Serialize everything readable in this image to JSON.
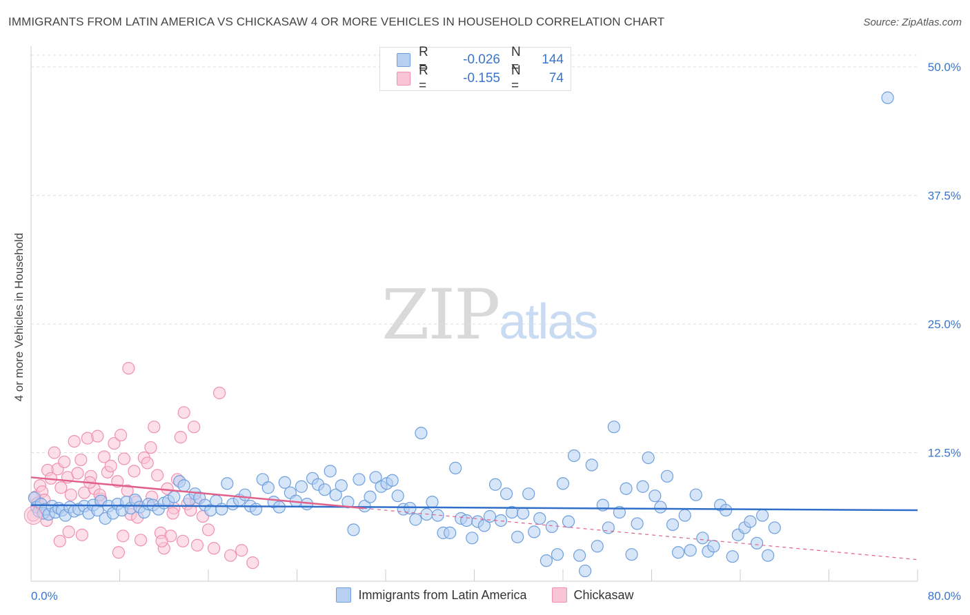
{
  "title": "IMMIGRANTS FROM LATIN AMERICA VS CHICKASAW 4 OR MORE VEHICLES IN HOUSEHOLD CORRELATION CHART",
  "source": "Source: ZipAtlas.com",
  "watermark": {
    "zip": "ZIP",
    "atlas": "atlas"
  },
  "legend": {
    "rows": [
      {
        "r_label": "R =",
        "r_value": "-0.026",
        "n_label": "N =",
        "n_value": "144"
      },
      {
        "r_label": "R =",
        "r_value": "-0.155",
        "n_label": "N =",
        "n_value": "74"
      }
    ]
  },
  "colors": {
    "blue": "#6e9fdc",
    "blue_fill": "#b7d0f2",
    "blue_line": "#2f6fca",
    "pink": "#ef90b0",
    "pink_fill": "#f9c4d6",
    "pink_line": "#e0608a",
    "grid": "#dddddd",
    "tick_text": "#3a74c8"
  },
  "chart_data": {
    "type": "scatter",
    "title": "IMMIGRANTS FROM LATIN AMERICA VS CHICKASAW 4 OR MORE VEHICLES IN HOUSEHOLD CORRELATION CHART",
    "xlabel": "",
    "ylabel": "4 or more Vehicles in Household",
    "xlim": [
      0,
      80
    ],
    "ylim": [
      0,
      50
    ],
    "x_tick_labels": [
      "0.0%",
      "80.0%"
    ],
    "y_ticks": [
      12.5,
      25.0,
      37.5,
      50.0
    ],
    "y_tick_labels": [
      "12.5%",
      "25.0%",
      "37.5%",
      "50.0%"
    ],
    "grid": "horizontal dashed",
    "series": [
      {
        "name": "Immigrants from Latin America",
        "color": "#6e9fdc",
        "trend": {
          "x": [
            0,
            80
          ],
          "y": [
            7.4,
            6.9
          ],
          "style": "solid"
        },
        "points": [
          [
            0.3,
            8.1
          ],
          [
            0.5,
            7.2
          ],
          [
            0.7,
            6.8
          ],
          [
            0.9,
            7.5
          ],
          [
            1.1,
            6.6
          ],
          [
            1.3,
            7.0
          ],
          [
            1.6,
            6.5
          ],
          [
            1.9,
            7.3
          ],
          [
            2.2,
            6.7
          ],
          [
            2.5,
            7.1
          ],
          [
            2.8,
            6.9
          ],
          [
            3.1,
            6.4
          ],
          [
            3.5,
            7.2
          ],
          [
            3.9,
            6.8
          ],
          [
            4.3,
            7.0
          ],
          [
            4.8,
            7.3
          ],
          [
            5.2,
            6.6
          ],
          [
            5.6,
            7.4
          ],
          [
            6.0,
            6.9
          ],
          [
            6.3,
            7.8
          ],
          [
            6.7,
            6.1
          ],
          [
            7.0,
            7.3
          ],
          [
            7.4,
            6.6
          ],
          [
            7.8,
            7.5
          ],
          [
            8.2,
            6.9
          ],
          [
            8.6,
            7.7
          ],
          [
            9.0,
            7.1
          ],
          [
            9.4,
            7.9
          ],
          [
            9.8,
            7.2
          ],
          [
            10.2,
            6.7
          ],
          [
            10.6,
            7.5
          ],
          [
            11.0,
            7.4
          ],
          [
            11.5,
            7.0
          ],
          [
            12.0,
            7.6
          ],
          [
            12.4,
            7.8
          ],
          [
            12.9,
            8.2
          ],
          [
            13.4,
            9.7
          ],
          [
            13.8,
            9.3
          ],
          [
            14.3,
            7.9
          ],
          [
            14.8,
            8.5
          ],
          [
            15.2,
            8.1
          ],
          [
            15.7,
            7.4
          ],
          [
            16.2,
            6.9
          ],
          [
            16.7,
            7.8
          ],
          [
            17.2,
            7.0
          ],
          [
            17.7,
            9.5
          ],
          [
            18.2,
            7.5
          ],
          [
            18.8,
            7.9
          ],
          [
            19.3,
            8.4
          ],
          [
            19.8,
            7.3
          ],
          [
            20.3,
            7.0
          ],
          [
            20.9,
            9.9
          ],
          [
            21.4,
            9.1
          ],
          [
            21.9,
            7.7
          ],
          [
            22.4,
            7.2
          ],
          [
            22.9,
            9.6
          ],
          [
            23.4,
            8.6
          ],
          [
            23.9,
            7.8
          ],
          [
            24.4,
            9.2
          ],
          [
            24.9,
            7.5
          ],
          [
            25.4,
            10.0
          ],
          [
            25.9,
            9.4
          ],
          [
            26.5,
            8.9
          ],
          [
            27.0,
            10.7
          ],
          [
            27.5,
            8.4
          ],
          [
            28.0,
            9.3
          ],
          [
            28.6,
            7.7
          ],
          [
            29.1,
            5.0
          ],
          [
            29.6,
            9.9
          ],
          [
            30.1,
            7.3
          ],
          [
            30.6,
            8.2
          ],
          [
            31.1,
            10.1
          ],
          [
            31.6,
            9.2
          ],
          [
            32.1,
            9.5
          ],
          [
            32.6,
            9.8
          ],
          [
            33.1,
            8.3
          ],
          [
            33.6,
            7.0
          ],
          [
            34.2,
            7.1
          ],
          [
            34.7,
            6.0
          ],
          [
            35.2,
            14.4
          ],
          [
            35.7,
            6.5
          ],
          [
            36.2,
            7.7
          ],
          [
            36.7,
            6.4
          ],
          [
            37.2,
            4.7
          ],
          [
            37.8,
            4.7
          ],
          [
            38.3,
            11.0
          ],
          [
            38.8,
            6.1
          ],
          [
            39.3,
            5.9
          ],
          [
            39.8,
            4.2
          ],
          [
            40.3,
            5.8
          ],
          [
            40.9,
            5.4
          ],
          [
            41.4,
            6.3
          ],
          [
            41.9,
            9.4
          ],
          [
            42.4,
            5.9
          ],
          [
            42.9,
            8.5
          ],
          [
            43.4,
            6.7
          ],
          [
            43.9,
            4.3
          ],
          [
            44.4,
            6.6
          ],
          [
            44.9,
            8.5
          ],
          [
            45.4,
            4.8
          ],
          [
            45.9,
            6.1
          ],
          [
            46.5,
            2.0
          ],
          [
            47.0,
            5.3
          ],
          [
            47.5,
            2.6
          ],
          [
            48.0,
            9.5
          ],
          [
            48.5,
            5.8
          ],
          [
            49.0,
            12.2
          ],
          [
            49.5,
            2.5
          ],
          [
            50.0,
            1.0
          ],
          [
            50.6,
            11.3
          ],
          [
            51.1,
            3.4
          ],
          [
            51.6,
            7.4
          ],
          [
            52.1,
            5.2
          ],
          [
            52.6,
            15.0
          ],
          [
            53.1,
            6.7
          ],
          [
            53.7,
            9.0
          ],
          [
            54.2,
            2.6
          ],
          [
            54.7,
            5.6
          ],
          [
            55.2,
            9.2
          ],
          [
            55.7,
            12.0
          ],
          [
            56.3,
            8.3
          ],
          [
            56.8,
            7.2
          ],
          [
            57.4,
            10.2
          ],
          [
            57.9,
            5.5
          ],
          [
            58.4,
            2.8
          ],
          [
            59.0,
            6.4
          ],
          [
            59.5,
            3.0
          ],
          [
            60.0,
            8.4
          ],
          [
            60.6,
            4.2
          ],
          [
            61.1,
            2.9
          ],
          [
            61.6,
            3.4
          ],
          [
            62.2,
            7.4
          ],
          [
            62.7,
            6.9
          ],
          [
            63.3,
            2.4
          ],
          [
            63.8,
            4.5
          ],
          [
            64.4,
            5.2
          ],
          [
            64.9,
            5.8
          ],
          [
            65.5,
            3.7
          ],
          [
            66.0,
            6.4
          ],
          [
            66.5,
            2.5
          ],
          [
            67.1,
            5.2
          ],
          [
            77.3,
            47.0
          ]
        ]
      },
      {
        "name": "Chickasaw",
        "color": "#ef90b0",
        "trend": {
          "x": [
            0,
            30
          ],
          "y": [
            10.1,
            7.1
          ],
          "style": "solid"
        },
        "trend_extension": {
          "x": [
            30,
            80
          ],
          "y": [
            7.1,
            2.1
          ],
          "style": "dashed"
        },
        "points": [
          [
            0.2,
            6.4
          ],
          [
            0.4,
            8.2
          ],
          [
            0.6,
            7.6
          ],
          [
            0.8,
            9.3
          ],
          [
            1.0,
            8.7
          ],
          [
            1.2,
            7.9
          ],
          [
            1.5,
            10.8
          ],
          [
            1.8,
            10.0
          ],
          [
            2.1,
            12.5
          ],
          [
            2.4,
            10.9
          ],
          [
            2.7,
            9.1
          ],
          [
            3.0,
            11.6
          ],
          [
            3.3,
            10.1
          ],
          [
            3.6,
            8.4
          ],
          [
            3.9,
            13.6
          ],
          [
            4.2,
            10.5
          ],
          [
            4.5,
            11.8
          ],
          [
            4.8,
            8.6
          ],
          [
            5.1,
            13.9
          ],
          [
            5.4,
            10.2
          ],
          [
            5.7,
            9.0
          ],
          [
            6.0,
            14.1
          ],
          [
            6.3,
            8.0
          ],
          [
            6.6,
            12.1
          ],
          [
            6.9,
            10.6
          ],
          [
            7.2,
            11.2
          ],
          [
            7.5,
            13.4
          ],
          [
            7.8,
            9.7
          ],
          [
            8.1,
            14.2
          ],
          [
            8.4,
            11.9
          ],
          [
            8.7,
            8.8
          ],
          [
            9.0,
            6.5
          ],
          [
            9.3,
            10.7
          ],
          [
            9.6,
            6.2
          ],
          [
            9.9,
            4.0
          ],
          [
            10.2,
            12.0
          ],
          [
            10.5,
            11.5
          ],
          [
            10.8,
            13.0
          ],
          [
            11.1,
            15.0
          ],
          [
            11.4,
            10.3
          ],
          [
            11.7,
            4.7
          ],
          [
            12.0,
            3.2
          ],
          [
            12.3,
            9.0
          ],
          [
            12.6,
            4.4
          ],
          [
            12.9,
            7.1
          ],
          [
            13.2,
            9.9
          ],
          [
            13.5,
            14.0
          ],
          [
            13.8,
            16.4
          ],
          [
            14.1,
            7.5
          ],
          [
            14.4,
            6.9
          ],
          [
            14.7,
            15.0
          ],
          [
            15.0,
            3.5
          ],
          [
            16.0,
            5.0
          ],
          [
            16.5,
            3.2
          ],
          [
            17.0,
            18.3
          ],
          [
            18.0,
            2.5
          ],
          [
            19.0,
            3.0
          ],
          [
            20.0,
            1.8
          ],
          [
            8.8,
            20.7
          ],
          [
            6.2,
            8.4
          ],
          [
            5.3,
            9.6
          ],
          [
            4.6,
            4.5
          ],
          [
            3.4,
            4.8
          ],
          [
            7.9,
            2.8
          ],
          [
            2.6,
            3.9
          ],
          [
            1.4,
            5.9
          ],
          [
            9.5,
            7.7
          ],
          [
            10.9,
            8.2
          ],
          [
            11.8,
            3.9
          ],
          [
            12.8,
            6.6
          ],
          [
            13.7,
            3.9
          ],
          [
            14.9,
            7.8
          ],
          [
            15.5,
            6.3
          ],
          [
            8.3,
            4.4
          ]
        ]
      }
    ]
  }
}
